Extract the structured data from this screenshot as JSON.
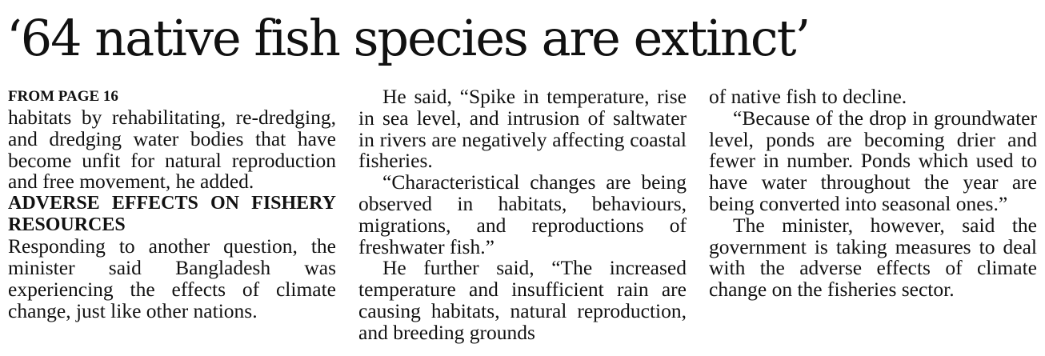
{
  "headline": "‘64 native fish species are extinct’",
  "column1": {
    "jump_label": "FROM PAGE 16",
    "p1": "habitats by rehabilitating, re-dredging, and dredging water bodies that have become unfit for natural reproduction and free movement, he added.",
    "subhead": "ADVERSE EFFECTS ON FISHERY RESOURCES",
    "p2": "Responding to another question, the minister said Bangladesh was experiencing the effects of climate change, just like other nations."
  },
  "column2": {
    "p1": "He said, “Spike in temperature, rise in sea level, and intrusion of saltwater in rivers are negatively affecting coastal fisheries.",
    "p2": "“Characteristical changes are being observed in habitats, behaviours, migrations, and reproductions of freshwater fish.”",
    "p3": "He further said, “The increased temperature and insufficient rain are causing habitats, natural reproduction, and breeding grounds"
  },
  "column3": {
    "p1": "of native fish to decline.",
    "p2": "“Because of the drop in groundwater level, ponds are becoming drier and fewer in number. Ponds which used to have water throughout the year are being converted into seasonal ones.”",
    "p3": "The minister, however, said the government is taking measures to deal with the adverse effects of climate change on the fisheries sector."
  }
}
